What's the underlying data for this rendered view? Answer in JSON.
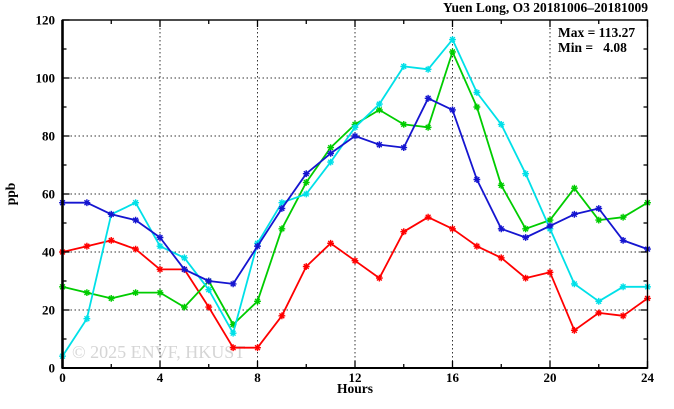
{
  "title": "Yuen Long, O3 20181006–20181009",
  "annotations": {
    "max_label": "Max = 113.27",
    "min_label": "Min =   4.08"
  },
  "watermark": "© 2025 ENVF, HKUST",
  "chart_data": {
    "type": "line",
    "title": "Yuen Long, O3 20181006–20181009",
    "xlabel": "Hours",
    "ylabel": "ppb",
    "xlim": [
      0,
      24
    ],
    "ylim": [
      0,
      120
    ],
    "x_major_ticks": [
      0,
      4,
      8,
      12,
      16,
      20,
      24
    ],
    "x_minor_step": 2,
    "y_major_ticks": [
      0,
      20,
      40,
      60,
      80,
      100,
      120
    ],
    "y_minor_step": 10,
    "grid": "dotted lines at interior major ticks, both axes",
    "legend": "none",
    "max_value": 113.27,
    "min_value": 4.08,
    "x": [
      0,
      1,
      2,
      3,
      4,
      5,
      6,
      7,
      8,
      9,
      10,
      11,
      12,
      13,
      14,
      15,
      16,
      17,
      18,
      19,
      20,
      21,
      22,
      23,
      24
    ],
    "series": [
      {
        "name": "trace-red",
        "color": "#ff0000",
        "values": [
          40,
          42,
          44,
          41,
          34,
          34,
          21,
          7,
          7,
          18,
          35,
          43,
          37,
          31,
          47,
          52,
          48,
          42,
          38,
          31,
          33,
          13,
          19,
          18,
          24
        ]
      },
      {
        "name": "trace-green",
        "color": "#00cc00",
        "values": [
          28,
          26,
          24,
          26,
          26,
          21,
          30,
          15,
          23,
          48,
          64,
          76,
          84,
          89,
          84,
          83,
          109,
          90,
          63,
          48,
          51,
          62,
          51,
          52,
          57
        ]
      },
      {
        "name": "trace-cyan",
        "color": "#00e0e8",
        "values": [
          4.08,
          17,
          53,
          57,
          42,
          38,
          27,
          12,
          43,
          57,
          60,
          71,
          83,
          91,
          104,
          103,
          113.27,
          95,
          84,
          67,
          48,
          29,
          23,
          28,
          28
        ]
      },
      {
        "name": "trace-blue",
        "color": "#1515d0",
        "values": [
          57,
          57,
          53,
          51,
          45,
          34,
          30,
          29,
          42,
          55,
          67,
          74,
          80,
          77,
          76,
          93,
          89,
          65,
          48,
          45,
          49,
          53,
          55,
          44,
          41
        ]
      }
    ]
  }
}
